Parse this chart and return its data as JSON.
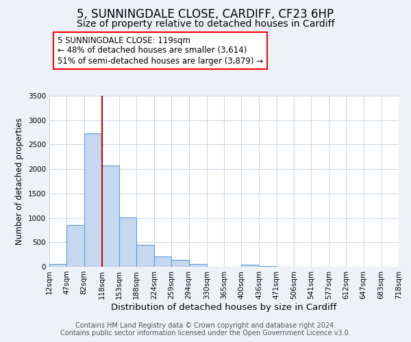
{
  "title": "5, SUNNINGDALE CLOSE, CARDIFF, CF23 6HP",
  "subtitle": "Size of property relative to detached houses in Cardiff",
  "xlabel": "Distribution of detached houses by size in Cardiff",
  "ylabel": "Number of detached properties",
  "bar_edges": [
    12,
    47,
    82,
    118,
    153,
    188,
    224,
    259,
    294,
    330,
    365,
    400,
    436,
    471,
    506,
    541,
    577,
    612,
    647,
    683,
    718
  ],
  "bar_heights": [
    55,
    850,
    2730,
    2070,
    1010,
    455,
    215,
    145,
    55,
    0,
    0,
    45,
    20,
    0,
    0,
    0,
    0,
    0,
    0,
    0
  ],
  "bar_color": "#c5d8f0",
  "bar_edgecolor": "#5b9bd5",
  "vline_x": 118,
  "vline_color": "#cc0000",
  "ylim": [
    0,
    3500
  ],
  "yticks": [
    0,
    500,
    1000,
    1500,
    2000,
    2500,
    3000,
    3500
  ],
  "annotation_box_text": "5 SUNNINGDALE CLOSE: 119sqm\n← 48% of detached houses are smaller (3,614)\n51% of semi-detached houses are larger (3,879) →",
  "footnote1": "Contains HM Land Registry data © Crown copyright and database right 2024.",
  "footnote2": "Contains public sector information licensed under the Open Government Licence v3.0.",
  "background_color": "#eef2f8",
  "plot_bg_color": "#ffffff",
  "grid_color": "#c8d4e8",
  "title_fontsize": 12,
  "subtitle_fontsize": 10,
  "xlabel_fontsize": 9.5,
  "ylabel_fontsize": 8.5,
  "tick_label_fontsize": 7.5,
  "annotation_fontsize": 8.5,
  "footnote_fontsize": 7
}
